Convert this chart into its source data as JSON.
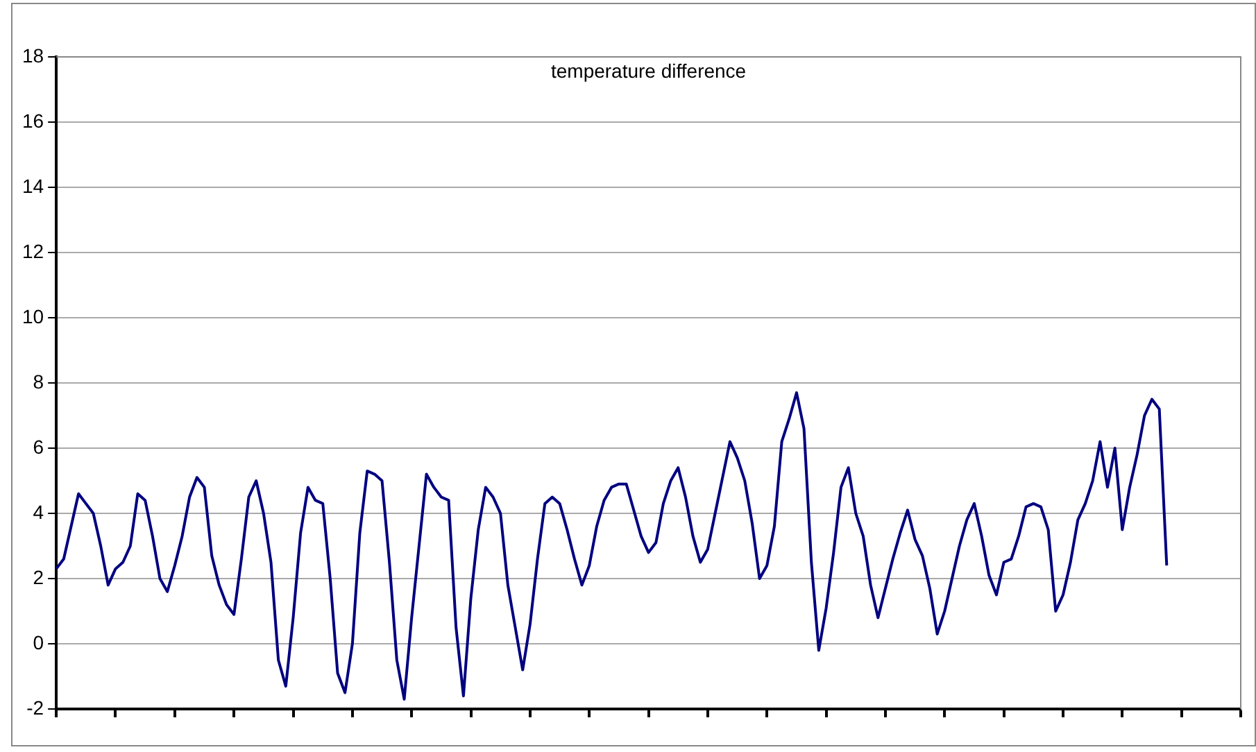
{
  "chart_data": {
    "type": "line",
    "title": "temperature difference",
    "categories": [
      null,
      null,
      null,
      null,
      null,
      null,
      null,
      null,
      null,
      null,
      null,
      null,
      null,
      null,
      null,
      null,
      null,
      null,
      null,
      null,
      null,
      null,
      null,
      null,
      null,
      null,
      null,
      null,
      null,
      null,
      null,
      null,
      null,
      null,
      null,
      null,
      null,
      null,
      null,
      null,
      null,
      null,
      null,
      null,
      null,
      null,
      null,
      null,
      null,
      null,
      null,
      null,
      null,
      null,
      null,
      null,
      null,
      null,
      null,
      null,
      null,
      null,
      null,
      null,
      null,
      null,
      null,
      null,
      null,
      null,
      null,
      null,
      null,
      null,
      null,
      null,
      null,
      null,
      null,
      null,
      null,
      null,
      null,
      null,
      null,
      null,
      null,
      null,
      null,
      null,
      null,
      null,
      null,
      null,
      null,
      null,
      null,
      null,
      null,
      null,
      null,
      null,
      null,
      null,
      null,
      null,
      null,
      null,
      null,
      null,
      null,
      null,
      null,
      null,
      null,
      null,
      null,
      null,
      null,
      null,
      null,
      null,
      null,
      null,
      null,
      null,
      null,
      null,
      null,
      null,
      null,
      null,
      null,
      null,
      null,
      null,
      null,
      null,
      null,
      null,
      null,
      null,
      null,
      null,
      null,
      null,
      null,
      null,
      null,
      null,
      null,
      null,
      null,
      null,
      null,
      null,
      null,
      null,
      null,
      null,
      null
    ],
    "series": [
      {
        "color": "#000080",
        "values": [
          2.3,
          2.6,
          3.6,
          4.6,
          4.3,
          4.0,
          3.0,
          1.8,
          2.3,
          2.5,
          3.0,
          4.6,
          4.4,
          3.3,
          2.0,
          1.6,
          2.4,
          3.3,
          4.5,
          5.1,
          4.8,
          2.7,
          1.8,
          1.2,
          0.9,
          2.6,
          4.5,
          5.0,
          4.0,
          2.5,
          -0.5,
          -1.3,
          0.8,
          3.4,
          4.8,
          4.4,
          4.3,
          2.0,
          -0.9,
          -1.5,
          0.0,
          3.4,
          5.3,
          5.2,
          5.0,
          2.5,
          -0.5,
          -1.7,
          0.8,
          3.0,
          5.2,
          4.8,
          4.5,
          4.4,
          0.5,
          -1.6,
          1.4,
          3.5,
          4.8,
          4.5,
          4.0,
          1.8,
          0.5,
          -0.8,
          0.6,
          2.6,
          4.3,
          4.5,
          4.3,
          3.5,
          2.6,
          1.8,
          2.4,
          3.6,
          4.4,
          4.8,
          4.9,
          4.9,
          4.1,
          3.3,
          2.8,
          3.1,
          4.3,
          5.0,
          5.4,
          4.5,
          3.3,
          2.5,
          2.9,
          4.0,
          5.1,
          6.2,
          5.7,
          5.0,
          3.7,
          2.0,
          2.4,
          3.6,
          6.2,
          6.9,
          7.7,
          6.6,
          2.5,
          -0.2,
          1.1,
          2.8,
          4.8,
          5.4,
          4.0,
          3.3,
          1.8,
          0.8,
          1.7,
          2.6,
          3.4,
          4.1,
          3.2,
          2.7,
          1.7,
          0.3,
          1.0,
          2.0,
          3.0,
          3.8,
          4.3,
          3.3,
          2.1,
          1.5,
          2.5,
          2.6,
          3.3,
          4.2,
          4.3,
          4.2,
          3.5,
          1.0,
          1.5,
          2.5,
          3.8,
          4.3,
          5.0,
          6.2,
          4.8,
          6.0,
          3.5,
          4.8,
          5.8,
          7.0,
          7.5,
          7.2,
          2.4,
          null,
          null,
          null,
          null,
          null,
          null,
          null,
          null,
          null,
          null
        ]
      }
    ],
    "ylim": [
      -2,
      18
    ],
    "yticks": [
      -2,
      0,
      2,
      4,
      6,
      8,
      10,
      12,
      14,
      16,
      18
    ],
    "grid": "y",
    "legend": false,
    "tick_labels": "y",
    "marker": "none",
    "line_style": "solid"
  }
}
